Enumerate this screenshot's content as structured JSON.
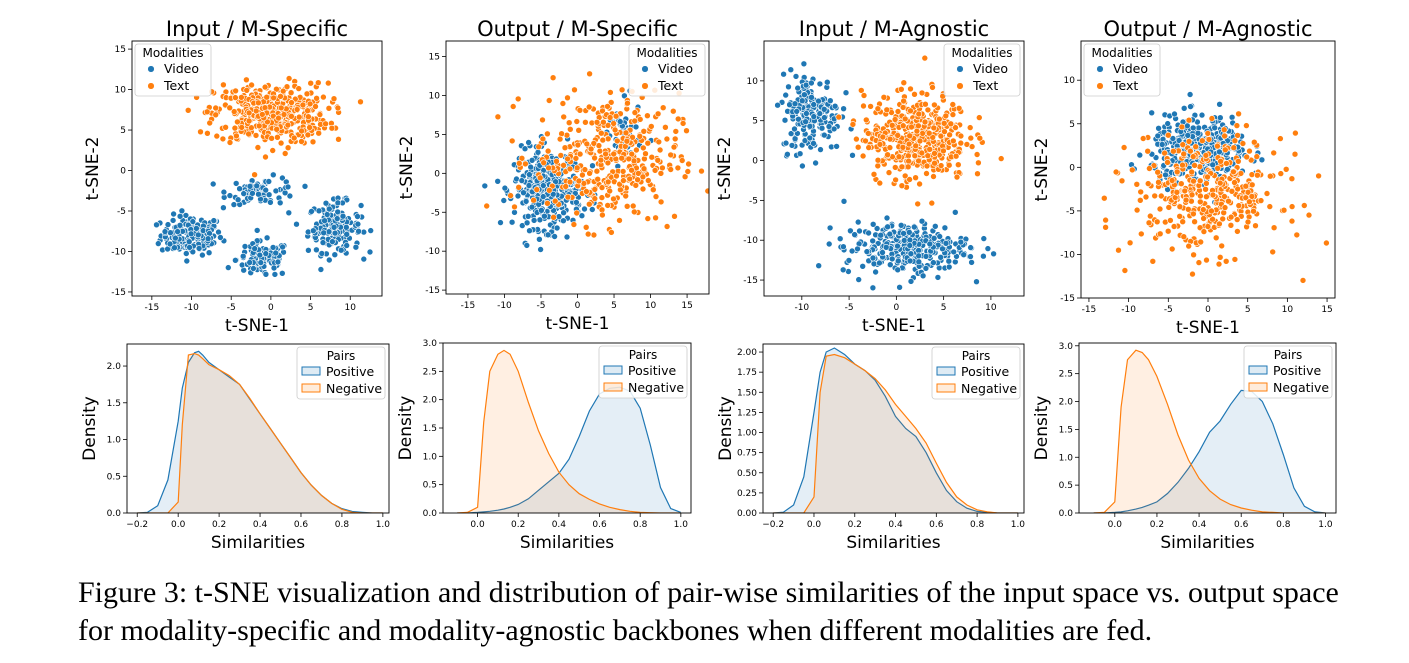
{
  "caption": "Figure 3: t-SNE visualization and distribution of pair-wise similarities of the input space vs. output space for modality-specific and modality-agnostic backbones when different modalities are fed.",
  "colors": {
    "video": "#1f77b4",
    "text": "#ff7f0e",
    "positive": "#1f77b4",
    "negative": "#ff7f0e"
  },
  "chart_data": [
    {
      "type": "scatter",
      "title": "Input / M-Specific",
      "xlabel": "t-SNE-1",
      "ylabel": "t-SNE-2",
      "xlim": [
        -17.5,
        14
      ],
      "ylim": [
        -15.5,
        16
      ],
      "xticks": [
        "-15",
        "-10",
        "-5",
        "0",
        "5",
        "10"
      ],
      "yticks": [
        "-15",
        "-10",
        "-5",
        "0",
        "5",
        "10",
        "15"
      ],
      "xtick_values": [
        -15,
        -10,
        -5,
        0,
        5,
        10
      ],
      "ytick_values": [
        -15,
        -10,
        -5,
        0,
        5,
        10,
        15
      ],
      "legend": {
        "title": "Modalities",
        "position": "top-left",
        "entries": [
          "Video",
          "Text"
        ]
      },
      "series": [
        {
          "name": "Video",
          "clusters": [
            {
              "cx": -10,
              "cy": -8,
              "sx": 3.5,
              "sy": 2.2,
              "n": 170
            },
            {
              "cx": 8,
              "cy": -7,
              "sx": 3.0,
              "sy": 2.8,
              "n": 160
            },
            {
              "cx": -1,
              "cy": -11,
              "sx": 3.0,
              "sy": 2.0,
              "n": 110
            },
            {
              "cx": -1,
              "cy": -2.5,
              "sx": 4.0,
              "sy": 1.5,
              "n": 70
            }
          ]
        },
        {
          "name": "Text",
          "clusters": [
            {
              "cx": 0,
              "cy": 7,
              "sx": 6.5,
              "sy": 3.4,
              "n": 420
            }
          ]
        }
      ]
    },
    {
      "type": "scatter",
      "title": "Output / M-Specific",
      "xlabel": "t-SNE-1",
      "ylabel": "t-SNE-2",
      "xlim": [
        -18,
        18
      ],
      "ylim": [
        -15.5,
        17
      ],
      "xticks": [
        "-15",
        "-10",
        "-5",
        "0",
        "5",
        "10",
        "15"
      ],
      "yticks": [
        "-15",
        "-10",
        "-5",
        "0",
        "5",
        "10",
        "15"
      ],
      "xtick_values": [
        -15,
        -10,
        -5,
        0,
        5,
        10,
        15
      ],
      "ytick_values": [
        -15,
        -10,
        -5,
        0,
        5,
        10,
        15
      ],
      "legend": {
        "title": "Modalities",
        "position": "top-right",
        "entries": [
          "Video",
          "Text"
        ]
      },
      "series": [
        {
          "name": "Video",
          "clusters": [
            {
              "cx": -4,
              "cy": -2,
              "sx": 4.2,
              "sy": 4.5,
              "n": 360
            },
            {
              "cx": 6,
              "cy": 5,
              "sx": 2.5,
              "sy": 3.5,
              "n": 50
            }
          ]
        },
        {
          "name": "Text",
          "clusters": [
            {
              "cx": 4,
              "cy": 2,
              "sx": 9.0,
              "sy": 7.5,
              "n": 380
            }
          ]
        }
      ]
    },
    {
      "type": "scatter",
      "title": "Input / M-Agnostic",
      "xlabel": "t-SNE-1",
      "ylabel": "t-SNE-2",
      "xlim": [
        -14,
        13.5
      ],
      "ylim": [
        -17,
        15
      ],
      "xticks": [
        "-10",
        "-5",
        "0",
        "5",
        "10"
      ],
      "yticks": [
        "-15",
        "-10",
        "-5",
        "0",
        "5",
        "10"
      ],
      "xtick_values": [
        -10,
        -5,
        0,
        5,
        10
      ],
      "ytick_values": [
        -15,
        -10,
        -5,
        0,
        5,
        10
      ],
      "legend": {
        "title": "Modalities",
        "position": "top-right",
        "entries": [
          "Video",
          "Text"
        ]
      },
      "series": [
        {
          "name": "Video",
          "clusters": [
            {
              "cx": -9,
              "cy": 6,
              "sx": 2.8,
              "sy": 4.5,
              "n": 190
            },
            {
              "cx": 1,
              "cy": -11,
              "sx": 6.0,
              "sy": 3.0,
              "n": 280
            }
          ]
        },
        {
          "name": "Text",
          "clusters": [
            {
              "cx": 2,
              "cy": 3,
              "sx": 5.0,
              "sy": 5.0,
              "n": 440
            }
          ]
        }
      ]
    },
    {
      "type": "scatter",
      "title": "Output / M-Agnostic",
      "xlabel": "t-SNE-1",
      "ylabel": "t-SNE-2",
      "xlim": [
        -16,
        16
      ],
      "ylim": [
        -15,
        14.5
      ],
      "xticks": [
        "-15",
        "-10",
        "-5",
        "0",
        "5",
        "10",
        "15"
      ],
      "yticks": [
        "-15",
        "-10",
        "-5",
        "0",
        "5",
        "10"
      ],
      "xtick_values": [
        -15,
        -10,
        -5,
        0,
        5,
        10,
        15
      ],
      "ytick_values": [
        -15,
        -10,
        -5,
        0,
        5,
        10
      ],
      "legend": {
        "title": "Modalities",
        "position": "top-left",
        "entries": [
          "Video",
          "Text"
        ]
      },
      "series": [
        {
          "name": "Video",
          "clusters": [
            {
              "cx": -1,
              "cy": 2,
              "sx": 5.5,
              "sy": 3.5,
              "n": 380
            }
          ]
        },
        {
          "name": "Text",
          "clusters": [
            {
              "cx": 0,
              "cy": -3,
              "sx": 8.5,
              "sy": 6.0,
              "n": 380
            }
          ]
        }
      ]
    },
    {
      "type": "area",
      "xlabel": "Similarities",
      "ylabel": "Density",
      "xlim": [
        -0.25,
        1.03
      ],
      "ylim": [
        0,
        2.3
      ],
      "xticks": [
        "−0.2",
        "0.0",
        "0.2",
        "0.4",
        "0.6",
        "0.8",
        "1.0"
      ],
      "yticks": [
        "0.0",
        "0.5",
        "1.0",
        "1.5",
        "2.0"
      ],
      "xtick_values": [
        -0.2,
        0,
        0.2,
        0.4,
        0.6,
        0.8,
        1.0
      ],
      "ytick_values": [
        0,
        0.5,
        1.0,
        1.5,
        2.0
      ],
      "legend": {
        "title": "Pairs",
        "position": "top-right",
        "entries": [
          "Positive",
          "Negative"
        ]
      },
      "x": [
        -0.2,
        -0.15,
        -0.1,
        -0.05,
        0,
        0.02,
        0.05,
        0.08,
        0.1,
        0.12,
        0.15,
        0.2,
        0.25,
        0.3,
        0.35,
        0.4,
        0.45,
        0.5,
        0.55,
        0.6,
        0.65,
        0.7,
        0.75,
        0.8,
        0.85,
        0.9,
        0.95,
        1.0
      ],
      "series": [
        {
          "name": "Positive",
          "values": [
            0,
            0.01,
            0.1,
            0.45,
            1.25,
            1.7,
            2.05,
            2.18,
            2.2,
            2.15,
            2.05,
            1.95,
            1.85,
            1.75,
            1.55,
            1.35,
            1.15,
            0.95,
            0.75,
            0.55,
            0.38,
            0.24,
            0.13,
            0.06,
            0.02,
            0.01,
            0,
            0
          ]
        },
        {
          "name": "Negative",
          "values": [
            0,
            0,
            0,
            0,
            0.15,
            1.2,
            2.15,
            2.17,
            2.15,
            2.1,
            2.02,
            1.95,
            1.87,
            1.75,
            1.56,
            1.35,
            1.15,
            0.95,
            0.75,
            0.55,
            0.38,
            0.24,
            0.13,
            0.05,
            0.01,
            0,
            0,
            0
          ]
        }
      ]
    },
    {
      "type": "area",
      "xlabel": "Similarities",
      "ylabel": "Density",
      "xlim": [
        -0.17,
        1.05
      ],
      "ylim": [
        0,
        3.0
      ],
      "xticks": [
        "0.0",
        "0.2",
        "0.4",
        "0.6",
        "0.8",
        "1.0"
      ],
      "yticks": [
        "0.0",
        "0.5",
        "1.0",
        "1.5",
        "2.0",
        "2.5",
        "3.0"
      ],
      "xtick_values": [
        0,
        0.2,
        0.4,
        0.6,
        0.8,
        1.0
      ],
      "ytick_values": [
        0,
        0.5,
        1.0,
        1.5,
        2.0,
        2.5,
        3.0
      ],
      "legend": {
        "title": "Pairs",
        "position": "top-right",
        "entries": [
          "Positive",
          "Negative"
        ]
      },
      "x": [
        -0.1,
        -0.05,
        0,
        0.03,
        0.06,
        0.1,
        0.13,
        0.16,
        0.2,
        0.25,
        0.3,
        0.35,
        0.4,
        0.45,
        0.5,
        0.55,
        0.6,
        0.65,
        0.7,
        0.75,
        0.8,
        0.85,
        0.9,
        0.95,
        1.0
      ],
      "series": [
        {
          "name": "Positive",
          "values": [
            0,
            0,
            0.01,
            0.02,
            0.03,
            0.05,
            0.07,
            0.1,
            0.15,
            0.25,
            0.4,
            0.55,
            0.7,
            0.95,
            1.35,
            1.8,
            2.1,
            2.2,
            2.22,
            2.15,
            1.85,
            1.2,
            0.45,
            0.08,
            0.01
          ]
        },
        {
          "name": "Negative",
          "values": [
            0,
            0.01,
            0.1,
            1.6,
            2.5,
            2.8,
            2.87,
            2.8,
            2.5,
            1.95,
            1.45,
            1.05,
            0.72,
            0.5,
            0.34,
            0.24,
            0.16,
            0.1,
            0.06,
            0.03,
            0.01,
            0.005,
            0,
            0,
            0
          ]
        }
      ]
    },
    {
      "type": "area",
      "xlabel": "Similarities",
      "ylabel": "Density",
      "xlim": [
        -0.25,
        1.03
      ],
      "ylim": [
        0,
        2.1
      ],
      "xticks": [
        "−0.2",
        "0.0",
        "0.2",
        "0.4",
        "0.6",
        "0.8",
        "1.0"
      ],
      "yticks": [
        "0.00",
        "0.25",
        "0.50",
        "0.75",
        "1.00",
        "1.25",
        "1.50",
        "1.75",
        "2.00"
      ],
      "xtick_values": [
        -0.2,
        0,
        0.2,
        0.4,
        0.6,
        0.8,
        1.0
      ],
      "ytick_values": [
        0,
        0.25,
        0.5,
        0.75,
        1.0,
        1.25,
        1.5,
        1.75,
        2.0
      ],
      "legend": {
        "title": "Pairs",
        "position": "top-right",
        "entries": [
          "Positive",
          "Negative"
        ]
      },
      "x": [
        -0.2,
        -0.15,
        -0.1,
        -0.05,
        0,
        0.03,
        0.06,
        0.1,
        0.15,
        0.2,
        0.25,
        0.3,
        0.35,
        0.4,
        0.45,
        0.5,
        0.55,
        0.6,
        0.65,
        0.7,
        0.75,
        0.8,
        0.85,
        0.9,
        0.95,
        1.0
      ],
      "series": [
        {
          "name": "Positive",
          "values": [
            0,
            0.01,
            0.1,
            0.45,
            1.25,
            1.75,
            2.0,
            2.05,
            1.97,
            1.85,
            1.77,
            1.65,
            1.45,
            1.2,
            1.05,
            0.95,
            0.75,
            0.5,
            0.28,
            0.14,
            0.06,
            0.02,
            0.01,
            0,
            0,
            0
          ]
        },
        {
          "name": "Negative",
          "values": [
            0,
            0,
            0,
            0,
            0.2,
            1.5,
            1.95,
            1.97,
            1.93,
            1.85,
            1.77,
            1.67,
            1.53,
            1.35,
            1.2,
            1.05,
            0.87,
            0.62,
            0.38,
            0.2,
            0.1,
            0.04,
            0.015,
            0,
            0,
            0
          ]
        }
      ]
    },
    {
      "type": "area",
      "xlabel": "Similarities",
      "ylabel": "Density",
      "xlim": [
        -0.17,
        1.05
      ],
      "ylim": [
        0,
        3.05
      ],
      "xticks": [
        "0.0",
        "0.2",
        "0.4",
        "0.6",
        "0.8",
        "1.0"
      ],
      "yticks": [
        "0.0",
        "0.5",
        "1.0",
        "1.5",
        "2.0",
        "2.5",
        "3.0"
      ],
      "xtick_values": [
        0,
        0.2,
        0.4,
        0.6,
        0.8,
        1.0
      ],
      "ytick_values": [
        0,
        0.5,
        1.0,
        1.5,
        2.0,
        2.5,
        3.0
      ],
      "legend": {
        "title": "Pairs",
        "position": "top-right",
        "entries": [
          "Positive",
          "Negative"
        ]
      },
      "x": [
        -0.1,
        -0.05,
        0,
        0.03,
        0.06,
        0.1,
        0.13,
        0.16,
        0.2,
        0.25,
        0.3,
        0.35,
        0.4,
        0.45,
        0.5,
        0.55,
        0.6,
        0.65,
        0.7,
        0.75,
        0.8,
        0.85,
        0.9,
        0.95,
        1.0
      ],
      "series": [
        {
          "name": "Positive",
          "values": [
            0,
            0,
            0.01,
            0.02,
            0.04,
            0.07,
            0.1,
            0.14,
            0.2,
            0.35,
            0.55,
            0.8,
            1.1,
            1.45,
            1.65,
            1.95,
            2.2,
            2.18,
            2.0,
            1.6,
            1.05,
            0.45,
            0.12,
            0.02,
            0
          ]
        },
        {
          "name": "Negative",
          "values": [
            0,
            0.01,
            0.2,
            1.9,
            2.75,
            2.92,
            2.88,
            2.75,
            2.45,
            1.95,
            1.4,
            0.95,
            0.62,
            0.4,
            0.25,
            0.15,
            0.09,
            0.05,
            0.02,
            0.01,
            0,
            0,
            0,
            0,
            0
          ]
        }
      ]
    }
  ]
}
